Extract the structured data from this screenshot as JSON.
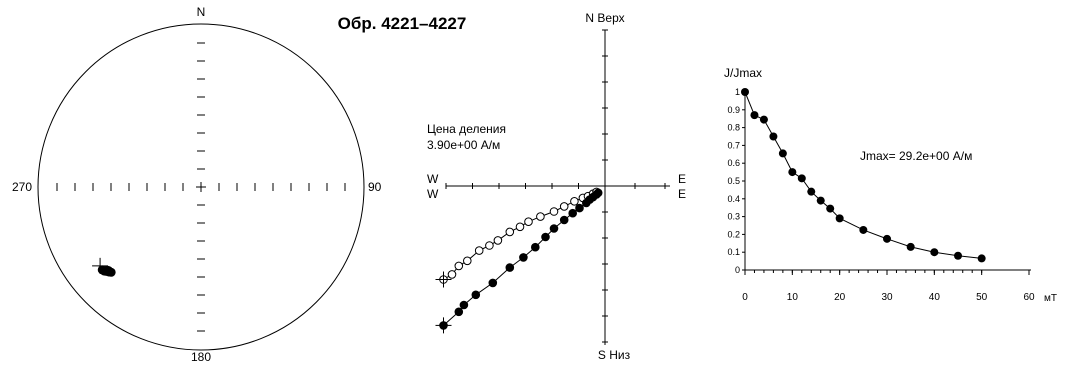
{
  "title": "Обр. 4221–4227",
  "stereonet": {
    "north": "N",
    "south": "180",
    "west": "270",
    "east": "90",
    "points": [
      {
        "dec": 230,
        "inc": 22
      },
      {
        "dec": 229,
        "inc": 22.5
      },
      {
        "dec": 228.5,
        "inc": 23
      },
      {
        "dec": 228.5,
        "inc": 24
      },
      {
        "dec": 227.5,
        "inc": 24
      },
      {
        "dec": 228,
        "inc": 24.5
      },
      {
        "dec": 227,
        "inc": 24.5
      },
      {
        "dec": 226.5,
        "inc": 25
      }
    ],
    "reference": {
      "dec": 232,
      "inc": 22.5
    }
  },
  "zijderveld": {
    "label_n": "N Верх",
    "label_s": "S Низ",
    "label_e1": "E",
    "label_e2": "E",
    "label_w1": "W",
    "label_w2": "W",
    "scale_label": "Цена деления",
    "scale_value": "3.90e+00  А/м"
  },
  "chart_data": {
    "type": "scatter",
    "title": "",
    "xlabel": "мТ",
    "ylabel": "J/Jmax",
    "annotation": "Jmax= 29.2e+00  А/м",
    "xlim": [
      0,
      60
    ],
    "ylim": [
      0,
      1
    ],
    "xticks": [
      "0",
      "10",
      "20",
      "30",
      "40",
      "50",
      "60"
    ],
    "yticks": [
      "0",
      "0.1",
      "0.2",
      "0.3",
      "0.4",
      "0.5",
      "0.6",
      "0.7",
      "0.8",
      "0.9",
      "1"
    ],
    "x": [
      0,
      2,
      4,
      6,
      8,
      10,
      12,
      14,
      16,
      18,
      20,
      25,
      30,
      35,
      40,
      45,
      50
    ],
    "values": [
      1.0,
      0.87,
      0.845,
      0.75,
      0.655,
      0.55,
      0.515,
      0.44,
      0.39,
      0.345,
      0.29,
      0.225,
      0.175,
      0.13,
      0.1,
      0.08,
      0.065
    ]
  },
  "zijderveld_data": {
    "horizontal": [
      {
        "x": -0.95,
        "y": -0.55
      },
      {
        "x": -0.9,
        "y": -0.52
      },
      {
        "x": -0.86,
        "y": -0.47
      },
      {
        "x": -0.81,
        "y": -0.44
      },
      {
        "x": -0.74,
        "y": -0.38
      },
      {
        "x": -0.68,
        "y": -0.35
      },
      {
        "x": -0.63,
        "y": -0.32
      },
      {
        "x": -0.56,
        "y": -0.27
      },
      {
        "x": -0.5,
        "y": -0.24
      },
      {
        "x": -0.45,
        "y": -0.21
      },
      {
        "x": -0.38,
        "y": -0.18
      },
      {
        "x": -0.3,
        "y": -0.15
      },
      {
        "x": -0.24,
        "y": -0.12
      },
      {
        "x": -0.18,
        "y": -0.09
      },
      {
        "x": -0.13,
        "y": -0.07
      },
      {
        "x": -0.1,
        "y": -0.06
      },
      {
        "x": -0.07,
        "y": -0.045
      },
      {
        "x": -0.05,
        "y": -0.035
      }
    ],
    "vertical": [
      {
        "x": -0.95,
        "y": -0.82
      },
      {
        "x": -0.86,
        "y": -0.74
      },
      {
        "x": -0.83,
        "y": -0.7
      },
      {
        "x": -0.76,
        "y": -0.64
      },
      {
        "x": -0.66,
        "y": -0.57
      },
      {
        "x": -0.56,
        "y": -0.48
      },
      {
        "x": -0.48,
        "y": -0.42
      },
      {
        "x": -0.41,
        "y": -0.36
      },
      {
        "x": -0.35,
        "y": -0.3
      },
      {
        "x": -0.3,
        "y": -0.25
      },
      {
        "x": -0.24,
        "y": -0.2
      },
      {
        "x": -0.19,
        "y": -0.16
      },
      {
        "x": -0.15,
        "y": -0.13
      },
      {
        "x": -0.11,
        "y": -0.1
      },
      {
        "x": -0.09,
        "y": -0.08
      },
      {
        "x": -0.07,
        "y": -0.065
      },
      {
        "x": -0.05,
        "y": -0.05
      },
      {
        "x": -0.04,
        "y": -0.04
      }
    ]
  }
}
